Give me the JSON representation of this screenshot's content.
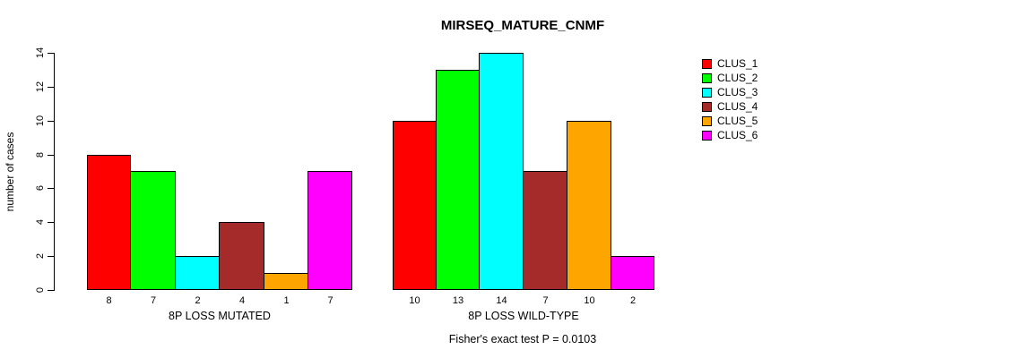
{
  "chart_data": {
    "type": "bar",
    "title": "MIRSEQ_MATURE_CNMF",
    "ylabel": "number of cases",
    "xlabel": "",
    "ylim": [
      0,
      14
    ],
    "y_ticks": [
      0,
      2,
      4,
      6,
      8,
      10,
      12,
      14
    ],
    "grid": false,
    "legend_position": "right",
    "series": [
      {
        "name": "CLUS_1",
        "color": "#FF0000"
      },
      {
        "name": "CLUS_2",
        "color": "#00FF00"
      },
      {
        "name": "CLUS_3",
        "color": "#00FFFF"
      },
      {
        "name": "CLUS_4",
        "color": "#A52A2A"
      },
      {
        "name": "CLUS_5",
        "color": "#FFA500"
      },
      {
        "name": "CLUS_6",
        "color": "#FF00FF"
      }
    ],
    "groups": [
      {
        "label": "8P LOSS MUTATED",
        "values": [
          8,
          7,
          2,
          4,
          1,
          7
        ]
      },
      {
        "label": "8P LOSS WILD-TYPE",
        "values": [
          10,
          13,
          14,
          7,
          10,
          2
        ]
      }
    ],
    "bar_value_labels_shown": true,
    "annotation": "Fisher's exact test P = 0.0103"
  }
}
